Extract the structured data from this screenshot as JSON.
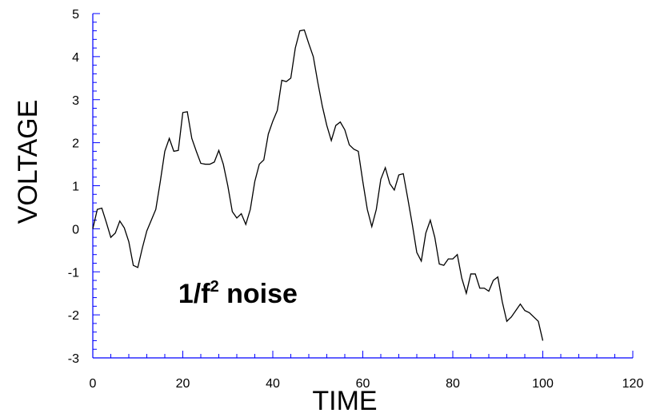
{
  "chart_data": {
    "type": "line",
    "title": "",
    "xlabel": "TIME",
    "ylabel": "VOLTAGE",
    "xlim": [
      0,
      120
    ],
    "ylim": [
      -3,
      5
    ],
    "x_ticks": [
      0,
      20,
      40,
      60,
      80,
      100,
      120
    ],
    "y_ticks": [
      5,
      4,
      3,
      2,
      1,
      0,
      -1,
      -2,
      -3
    ],
    "grid": false,
    "annotation": {
      "base": "1/f",
      "superscript": "2",
      "suffix": " noise"
    },
    "series": [
      {
        "x": [
          0,
          1,
          2,
          3,
          4,
          5,
          6,
          7,
          8,
          9,
          10,
          11,
          12,
          13,
          14,
          15,
          16,
          17,
          18,
          19,
          20,
          21,
          22,
          23,
          24,
          25,
          26,
          27,
          28,
          29,
          30,
          31,
          32,
          33,
          34,
          35,
          36,
          37,
          38,
          39,
          40,
          41,
          42,
          43,
          44,
          45,
          46,
          47,
          48,
          49,
          50,
          51,
          52,
          53,
          54,
          55,
          56,
          57,
          58,
          59,
          60,
          61,
          62,
          63,
          64,
          65,
          66,
          67,
          68,
          69,
          70,
          71,
          72,
          73,
          74,
          75,
          76,
          77,
          78,
          79,
          80,
          81,
          82,
          83,
          84,
          85,
          86,
          87,
          88,
          89,
          90,
          91,
          92,
          93,
          94,
          95,
          96,
          97,
          98,
          99,
          100
        ],
        "values": [
          0,
          0.45,
          0.48,
          0.15,
          -0.2,
          -0.1,
          0.18,
          0.02,
          -0.3,
          -0.85,
          -0.9,
          -0.45,
          -0.05,
          0.2,
          0.45,
          1.1,
          1.8,
          2.1,
          1.8,
          1.82,
          2.7,
          2.72,
          2.1,
          1.8,
          1.52,
          1.5,
          1.5,
          1.55,
          1.82,
          1.5,
          1.0,
          0.4,
          0.25,
          0.35,
          0.1,
          0.45,
          1.1,
          1.5,
          1.6,
          2.2,
          2.5,
          2.75,
          3.45,
          3.42,
          3.5,
          4.2,
          4.6,
          4.62,
          4.3,
          4.0,
          3.4,
          2.85,
          2.4,
          2.05,
          2.4,
          2.48,
          2.3,
          1.95,
          1.85,
          1.8,
          1.1,
          0.45,
          0.05,
          0.45,
          1.15,
          1.42,
          1.05,
          0.9,
          1.25,
          1.28,
          0.7,
          0.1,
          -0.55,
          -0.75,
          -0.1,
          0.2,
          -0.2,
          -0.82,
          -0.85,
          -0.7,
          -0.7,
          -0.6,
          -1.15,
          -1.5,
          -1.05,
          -1.05,
          -1.38,
          -1.38,
          -1.45,
          -1.2,
          -1.12,
          -1.7,
          -2.15,
          -2.05,
          -1.9,
          -1.75,
          -1.9,
          -1.95,
          -2.05,
          -2.15,
          -2.6
        ]
      }
    ]
  }
}
